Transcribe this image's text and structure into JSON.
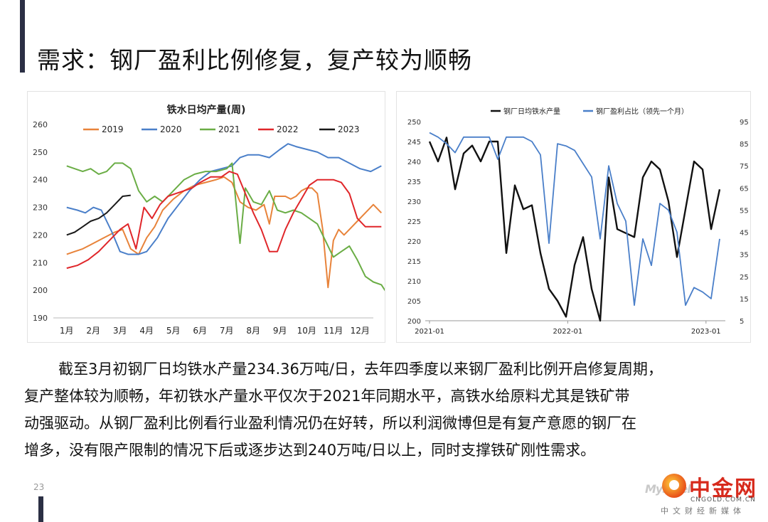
{
  "header": {
    "title": "需求：钢厂盈利比例修复，复产较为顺畅"
  },
  "chart_data": [
    {
      "type": "line",
      "title": "铁水日均产量(周)",
      "xlabel": "",
      "ylabel": "",
      "ylim": [
        190,
        260
      ],
      "yticks": [
        190,
        200,
        210,
        220,
        230,
        240,
        250,
        260
      ],
      "categories": [
        "1月",
        "2月",
        "3月",
        "4月",
        "5月",
        "6月",
        "7月",
        "8月",
        "9月",
        "10月",
        "11月",
        "12月"
      ],
      "legend_position": "top",
      "series": [
        {
          "name": "2019",
          "color": "#e8833a",
          "x": [
            0,
            0.3,
            0.6,
            1,
            1.4,
            1.8,
            2.1,
            2.4,
            2.7,
            3.0,
            3.3,
            3.6,
            4,
            4.4,
            4.8,
            5.2,
            5.6,
            5.9,
            6.2,
            6.5,
            6.8,
            7.1,
            7.4,
            7.6,
            7.8,
            8.0,
            8.2,
            8.4,
            8.6,
            8.8,
            9.0,
            9.2,
            9.4,
            9.6,
            9.8,
            10.0,
            10.2,
            10.4,
            10.6,
            10.9,
            11.2,
            11.5,
            11.8
          ],
          "values": [
            213,
            214,
            215,
            217,
            219,
            221,
            222,
            215,
            213,
            219,
            223,
            229,
            233,
            236,
            238,
            239,
            240,
            241,
            239,
            232,
            230,
            229,
            231,
            224,
            234,
            234,
            234,
            233,
            234,
            236,
            237,
            237,
            235,
            222,
            201,
            218,
            222,
            220,
            222,
            225,
            228,
            231,
            228
          ]
        },
        {
          "name": "2020",
          "color": "#4a7fc9",
          "x": [
            0,
            0.4,
            0.7,
            1,
            1.3,
            1.7,
            2.0,
            2.3,
            2.7,
            3.0,
            3.4,
            3.8,
            4.2,
            4.6,
            5.0,
            5.4,
            5.8,
            6.2,
            6.5,
            6.8,
            7.2,
            7.6,
            8.0,
            8.3,
            8.6,
            9.0,
            9.4,
            9.8,
            10.2,
            10.6,
            11.0,
            11.4,
            11.8
          ],
          "values": [
            230,
            229,
            228,
            230,
            229,
            221,
            214,
            213,
            213,
            214,
            219,
            226,
            231,
            236,
            240,
            243,
            244,
            245,
            248,
            249,
            249,
            248,
            251,
            253,
            252,
            251,
            250,
            248,
            248,
            246,
            244,
            243,
            245
          ]
        },
        {
          "name": "2021",
          "color": "#6aad45",
          "x": [
            0,
            0.3,
            0.6,
            0.9,
            1.2,
            1.5,
            1.8,
            2.1,
            2.4,
            2.7,
            3.0,
            3.3,
            3.6,
            4,
            4.4,
            4.8,
            5.2,
            5.6,
            6.0,
            6.2,
            6.5,
            6.7,
            7.0,
            7.3,
            7.6,
            7.9,
            8.2,
            8.5,
            8.8,
            9.1,
            9.4,
            9.7,
            10.0,
            10.3,
            10.6,
            10.9,
            11.2,
            11.5,
            11.8,
            12.0
          ],
          "values": [
            245,
            244,
            243,
            244,
            242,
            243,
            246,
            246,
            244,
            236,
            232,
            234,
            232,
            236,
            240,
            242,
            243,
            243,
            244,
            246,
            217,
            237,
            232,
            231,
            236,
            229,
            228,
            229,
            228,
            226,
            224,
            218,
            212,
            214,
            216,
            211,
            205,
            203,
            202,
            199
          ]
        },
        {
          "name": "2022",
          "color": "#e0262a",
          "x": [
            0,
            0.4,
            0.8,
            1.2,
            1.6,
            2.0,
            2.3,
            2.6,
            2.9,
            3.2,
            3.5,
            3.8,
            4.1,
            4.4,
            4.7,
            5.0,
            5.4,
            5.8,
            6.1,
            6.4,
            6.7,
            7.0,
            7.3,
            7.6,
            7.9,
            8.2,
            8.5,
            8.8,
            9.1,
            9.4,
            9.7,
            10.0,
            10.3,
            10.6,
            10.9,
            11.2,
            11.5,
            11.8
          ],
          "values": [
            208,
            209,
            211,
            214,
            218,
            222,
            224,
            215,
            230,
            226,
            231,
            234,
            235,
            236,
            237,
            239,
            241,
            241,
            243,
            242,
            235,
            228,
            222,
            214,
            214,
            222,
            228,
            233,
            238,
            240,
            240,
            240,
            239,
            235,
            226,
            223,
            223,
            223
          ]
        },
        {
          "name": "2023",
          "color": "#1a1a1a",
          "x": [
            0,
            0.3,
            0.6,
            0.9,
            1.2,
            1.5,
            1.8,
            2.1,
            2.4
          ],
          "values": [
            220,
            221,
            223,
            225,
            226,
            228,
            231,
            234,
            234.36
          ]
        }
      ]
    },
    {
      "type": "line",
      "title": "",
      "categories": [
        "2021-01",
        "2022-01",
        "2023-01"
      ],
      "ylim_left": [
        200,
        250
      ],
      "yticks_left": [
        200,
        205,
        210,
        215,
        220,
        225,
        230,
        235,
        240,
        245,
        250
      ],
      "ylim_right": [
        5,
        95
      ],
      "yticks_right": [
        5,
        15,
        25,
        35,
        45,
        55,
        65,
        75,
        85,
        95
      ],
      "legend_position": "top",
      "series": [
        {
          "name": "钢厂日均铁水产量",
          "color": "#111111",
          "axis": "left",
          "x": [
            0,
            1,
            2,
            3,
            4,
            5,
            6,
            7,
            8,
            9,
            10,
            11,
            12,
            13,
            14,
            15,
            16,
            17,
            18,
            19,
            20,
            21,
            22,
            23,
            24,
            25,
            26,
            27,
            28,
            29,
            30,
            31,
            32,
            33,
            34
          ],
          "values": [
            245,
            240,
            246,
            233,
            242,
            244,
            240,
            245,
            245,
            217,
            234,
            228,
            229,
            217,
            208,
            205,
            201,
            214,
            221,
            208,
            199,
            236,
            223,
            222,
            221,
            236,
            240,
            238,
            230,
            216,
            228,
            240,
            238,
            223,
            233
          ]
        },
        {
          "name": "钢厂盈利占比（领先一个月）",
          "color": "#4a7fc9",
          "axis": "right",
          "x": [
            0,
            1,
            2,
            3,
            4,
            5,
            6,
            7,
            8,
            9,
            10,
            11,
            12,
            13,
            14,
            15,
            16,
            17,
            18,
            19,
            20,
            21,
            22,
            23,
            24,
            25,
            26,
            27,
            28,
            29,
            30,
            31,
            32,
            33,
            34
          ],
          "values": [
            90,
            88,
            85,
            81,
            88,
            88,
            88,
            88,
            78,
            88,
            88,
            88,
            86,
            80,
            40,
            85,
            84,
            82,
            76,
            70,
            42,
            75,
            58,
            50,
            12,
            42,
            30,
            58,
            55,
            45,
            12,
            20,
            18,
            15,
            42
          ]
        }
      ]
    }
  ],
  "body_text": {
    "line1": "截至3月初钢厂日均铁水产量234.36万吨/日，去年四季度以来钢厂盈利比例开启修复周期，",
    "line2": "复产整体较为顺畅，年初铁水产量水平仅次于2021年同期水平，高铁水给原料尤其是铁矿带",
    "line3": "动强驱动。从钢厂盈利比例看行业盈利情况仍在好转，所以利润微博但是有复产意愿的钢厂在",
    "line4": "增多，没有限产限制的情况下后或逐步达到240万吨/日以上，同时支撑铁矿刚性需求。"
  },
  "footer": {
    "page_number": "23",
    "logo_text": "中金网",
    "logo_domain": "CNGOLD.COM.CN",
    "logo_subtitle": "中文财经新媒体",
    "watermark": "Mysteel"
  }
}
